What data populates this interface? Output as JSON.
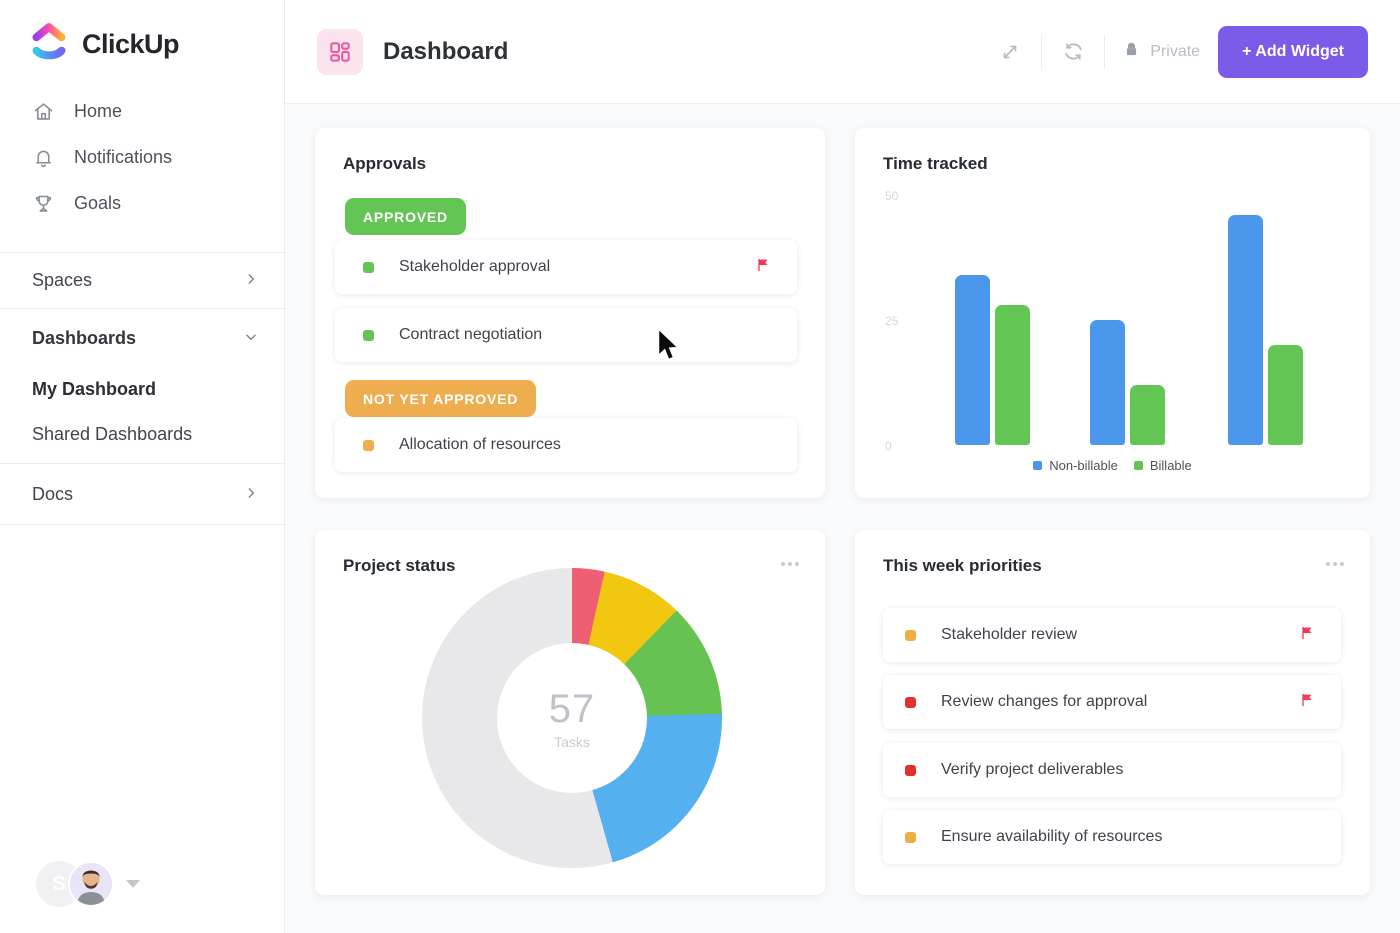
{
  "app": {
    "brand": "ClickUp"
  },
  "sidebar": {
    "items": [
      {
        "label": "Home",
        "icon": "home-icon"
      },
      {
        "label": "Notifications",
        "icon": "bell-icon"
      },
      {
        "label": "Goals",
        "icon": "trophy-icon"
      }
    ],
    "spaces_label": "Spaces",
    "dashboards_label": "Dashboards",
    "my_dashboard_label": "My Dashboard",
    "shared_dashboards_label": "Shared Dashboards",
    "docs_label": "Docs",
    "avatar_initial": "S"
  },
  "header": {
    "title": "Dashboard",
    "privacy_label": "Private",
    "add_widget_label": "+ Add Widget"
  },
  "widgets": {
    "approvals": {
      "title": "Approvals",
      "groups": [
        {
          "badge": "APPROVED",
          "badge_color": "#62c554",
          "tasks": [
            {
              "title": "Stakeholder approval",
              "status_color": "#62c554",
              "flag": true
            },
            {
              "title": "Contract negotiation",
              "status_color": "#62c554",
              "flag": false
            }
          ]
        },
        {
          "badge": "NOT YET APPROVED",
          "badge_color": "#eeae4f",
          "tasks": [
            {
              "title": "Allocation of resources",
              "status_color": "#eeae4f",
              "flag": false
            }
          ]
        }
      ]
    },
    "time_tracked": {
      "title": "Time tracked"
    },
    "project_status": {
      "title": "Project status"
    },
    "priorities": {
      "title": "This week priorities",
      "tasks": [
        {
          "title": "Stakeholder review",
          "status_color": "#eeae43",
          "flag": true
        },
        {
          "title": "Review changes for approval",
          "status_color": "#e0312b",
          "flag": true
        },
        {
          "title": "Verify project deliverables",
          "status_color": "#e0312b",
          "flag": false
        },
        {
          "title": "Ensure availability of resources",
          "status_color": "#eeae43",
          "flag": false
        }
      ]
    }
  },
  "chart_data": [
    {
      "type": "bar",
      "title": "Time tracked",
      "categories": [
        "",
        "",
        ""
      ],
      "series": [
        {
          "name": "Non-billable",
          "color": "#4a97ec",
          "values": [
            34,
            25,
            46
          ]
        },
        {
          "name": "Billable",
          "color": "#62c554",
          "values": [
            28,
            12,
            20
          ]
        }
      ],
      "xlabel": "",
      "ylabel": "",
      "ylim": [
        0,
        50
      ],
      "yticks": [
        0,
        25,
        50
      ],
      "grid": false,
      "legend_position": "bottom"
    },
    {
      "type": "pie",
      "subtype": "donut",
      "title": "Project status",
      "center_value": "57",
      "center_label": "Tasks",
      "total_tasks": 57,
      "segments": [
        {
          "value": 2,
          "color": "#ee5f74"
        },
        {
          "value": 5,
          "color": "#f2c711"
        },
        {
          "value": 7,
          "color": "#66c351"
        },
        {
          "value": 12,
          "color": "#55b0ef"
        },
        {
          "value": 31,
          "color": "#e8e8eb"
        }
      ],
      "start_angle_deg": 0,
      "direction": "clockwise"
    }
  ],
  "colors": {
    "accent_purple": "#7b5ce9",
    "brand_pink": "#ee5aa0",
    "flag_red": "#f23b57",
    "bar_blue": "#4a97ec",
    "bar_green": "#62c554"
  }
}
